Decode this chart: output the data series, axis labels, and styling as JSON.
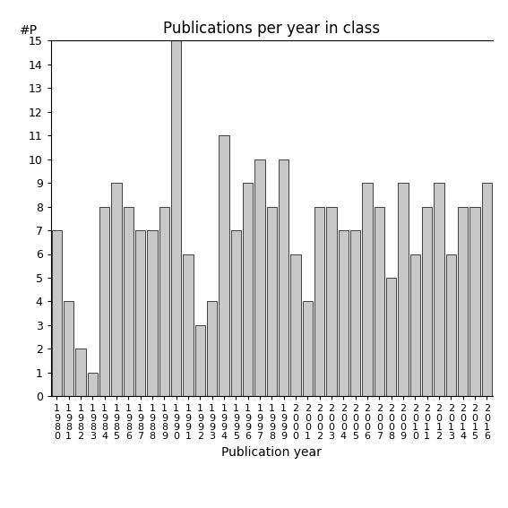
{
  "title": "Publications per year in class",
  "xlabel": "Publication year",
  "ylabel": "#P",
  "categories": [
    "1980",
    "1981",
    "1982",
    "1983",
    "1984",
    "1985",
    "1986",
    "1987",
    "1988",
    "1989",
    "1990",
    "1991",
    "1992",
    "1993",
    "1994",
    "1995",
    "1996",
    "1997",
    "1998",
    "1999",
    "2000",
    "2001",
    "2002",
    "2003",
    "2004",
    "2005",
    "2006",
    "2007",
    "2008",
    "2009",
    "2010",
    "2011",
    "2012",
    "2013",
    "2014",
    "2015",
    "2016"
  ],
  "values": [
    7,
    4,
    2,
    1,
    8,
    9,
    8,
    7,
    7,
    8,
    15,
    6,
    3,
    4,
    11,
    7,
    9,
    10,
    8,
    10,
    6,
    4,
    8,
    8,
    7,
    7,
    9,
    8,
    5,
    9,
    6,
    8,
    9,
    6,
    8,
    8,
    9
  ],
  "bar_color": "#c8c8c8",
  "bar_edge_color": "#000000",
  "ylim": [
    0,
    15
  ],
  "yticks": [
    0,
    1,
    2,
    3,
    4,
    5,
    6,
    7,
    8,
    9,
    10,
    11,
    12,
    13,
    14,
    15
  ],
  "title_fontsize": 12,
  "label_fontsize": 10,
  "tick_fontsize": 9
}
